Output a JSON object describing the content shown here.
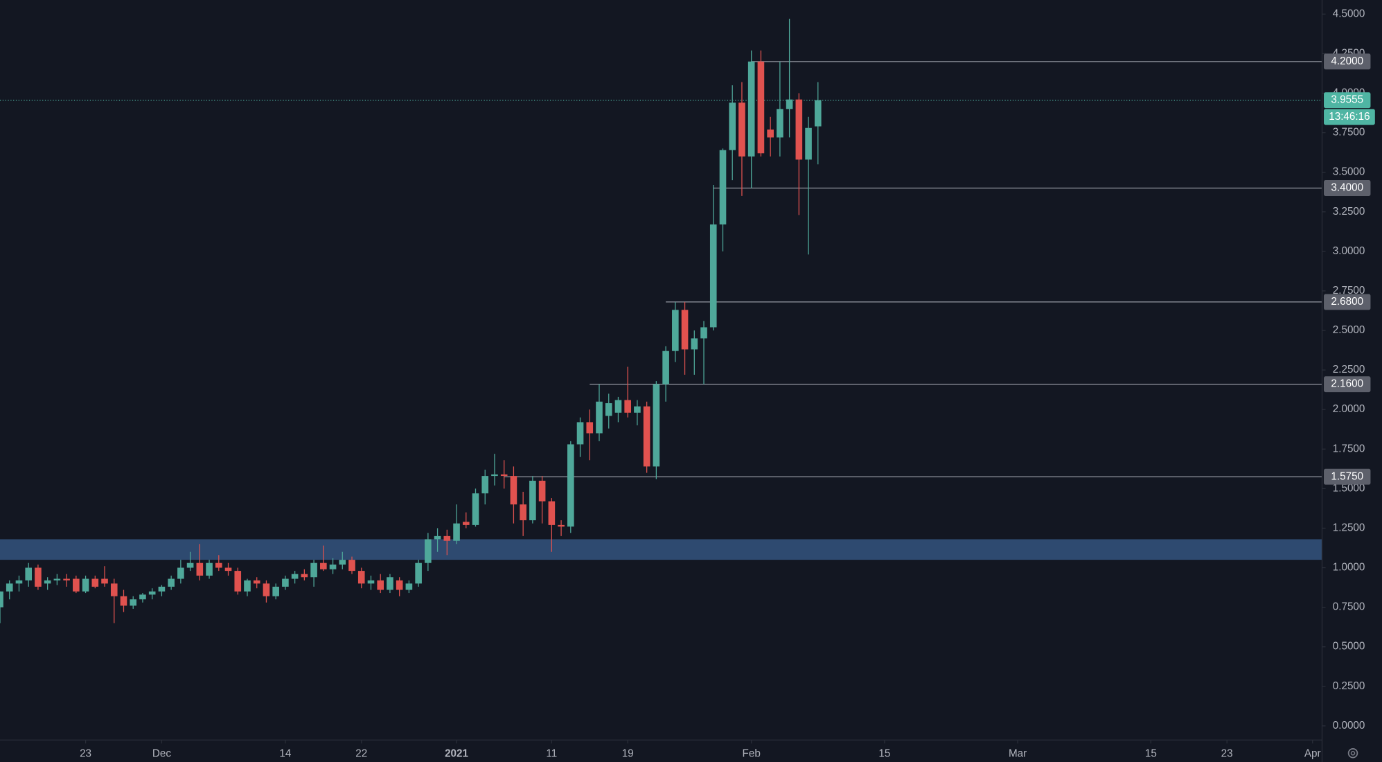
{
  "chart_data": {
    "type": "candlestick",
    "x": [
      "2020-11-14",
      "2020-11-15",
      "2020-11-16",
      "2020-11-17",
      "2020-11-18",
      "2020-11-19",
      "2020-11-20",
      "2020-11-21",
      "2020-11-22",
      "2020-11-23",
      "2020-11-24",
      "2020-11-25",
      "2020-11-26",
      "2020-11-27",
      "2020-11-28",
      "2020-11-29",
      "2020-11-30",
      "2020-12-01",
      "2020-12-02",
      "2020-12-03",
      "2020-12-04",
      "2020-12-05",
      "2020-12-06",
      "2020-12-07",
      "2020-12-08",
      "2020-12-09",
      "2020-12-10",
      "2020-12-11",
      "2020-12-12",
      "2020-12-13",
      "2020-12-14",
      "2020-12-15",
      "2020-12-16",
      "2020-12-17",
      "2020-12-18",
      "2020-12-19",
      "2020-12-20",
      "2020-12-21",
      "2020-12-22",
      "2020-12-23",
      "2020-12-24",
      "2020-12-25",
      "2020-12-26",
      "2020-12-27",
      "2020-12-28",
      "2020-12-29",
      "2020-12-30",
      "2020-12-31",
      "2021-01-01",
      "2021-01-02",
      "2021-01-03",
      "2021-01-04",
      "2021-01-05",
      "2021-01-06",
      "2021-01-07",
      "2021-01-08",
      "2021-01-09",
      "2021-01-10",
      "2021-01-11",
      "2021-01-12",
      "2021-01-13",
      "2021-01-14",
      "2021-01-15",
      "2021-01-16",
      "2021-01-17",
      "2021-01-18",
      "2021-01-19",
      "2021-01-20",
      "2021-01-21",
      "2021-01-22",
      "2021-01-23",
      "2021-01-24",
      "2021-01-25",
      "2021-01-26",
      "2021-01-27",
      "2021-01-28",
      "2021-01-29",
      "2021-01-30",
      "2021-01-31",
      "2021-02-01",
      "2021-02-02",
      "2021-02-03",
      "2021-02-04",
      "2021-02-05",
      "2021-02-06",
      "2021-02-07",
      "2021-02-08"
    ],
    "open": [
      0.75,
      0.85,
      0.9,
      0.92,
      1.0,
      0.9,
      0.92,
      0.93,
      0.93,
      0.85,
      0.93,
      0.93,
      0.9,
      0.82,
      0.76,
      0.8,
      0.83,
      0.85,
      0.88,
      0.93,
      1.0,
      1.03,
      0.95,
      1.03,
      1.0,
      0.98,
      0.85,
      0.92,
      0.9,
      0.82,
      0.88,
      0.93,
      0.96,
      0.94,
      1.03,
      0.99,
      1.02,
      1.05,
      0.98,
      0.9,
      0.92,
      0.86,
      0.92,
      0.86,
      0.9,
      1.03,
      1.18,
      1.2,
      1.17,
      1.29,
      1.27,
      1.47,
      1.58,
      1.59,
      1.58,
      1.4,
      1.3,
      1.55,
      1.42,
      1.27,
      1.26,
      1.78,
      1.92,
      1.85,
      1.96,
      1.98,
      2.06,
      1.98,
      2.02,
      1.64,
      2.16,
      2.37,
      2.63,
      2.38,
      2.45,
      2.52,
      3.17,
      3.64,
      3.94,
      3.6,
      4.2,
      3.77,
      3.72,
      3.9,
      3.96,
      3.58,
      3.79
    ],
    "high": [
      0.85,
      0.92,
      0.95,
      1.03,
      1.02,
      0.94,
      0.96,
      0.96,
      0.95,
      0.95,
      0.95,
      1.01,
      0.93,
      0.86,
      0.82,
      0.84,
      0.87,
      0.89,
      0.95,
      1.05,
      1.1,
      1.15,
      1.05,
      1.08,
      1.03,
      1.0,
      0.93,
      0.94,
      0.92,
      0.9,
      0.95,
      0.98,
      0.99,
      1.05,
      1.14,
      1.06,
      1.1,
      1.07,
      1.0,
      0.95,
      0.96,
      0.96,
      0.94,
      0.92,
      1.05,
      1.22,
      1.25,
      1.24,
      1.4,
      1.35,
      1.5,
      1.62,
      1.72,
      1.68,
      1.64,
      1.48,
      1.58,
      1.58,
      1.44,
      1.3,
      1.8,
      1.95,
      2.0,
      2.16,
      2.1,
      2.08,
      2.27,
      2.06,
      2.05,
      2.18,
      2.4,
      2.68,
      2.68,
      2.5,
      2.56,
      3.42,
      3.65,
      4.05,
      4.07,
      4.27,
      4.27,
      3.85,
      4.2,
      4.47,
      4.0,
      3.85,
      4.07
    ],
    "low": [
      0.65,
      0.8,
      0.85,
      0.88,
      0.86,
      0.86,
      0.89,
      0.88,
      0.84,
      0.84,
      0.87,
      0.88,
      0.65,
      0.72,
      0.74,
      0.78,
      0.8,
      0.82,
      0.86,
      0.9,
      0.98,
      0.92,
      0.93,
      0.98,
      0.95,
      0.83,
      0.82,
      0.87,
      0.78,
      0.8,
      0.86,
      0.9,
      0.92,
      0.88,
      0.98,
      0.96,
      0.99,
      0.96,
      0.87,
      0.86,
      0.84,
      0.84,
      0.82,
      0.84,
      0.88,
      0.98,
      1.1,
      1.08,
      1.15,
      1.25,
      1.26,
      1.4,
      1.52,
      1.5,
      1.28,
      1.2,
      1.28,
      1.28,
      1.1,
      1.2,
      1.22,
      1.7,
      1.68,
      1.8,
      1.88,
      1.92,
      1.95,
      1.9,
      1.6,
      1.56,
      2.05,
      2.3,
      2.22,
      2.22,
      2.16,
      2.5,
      3.0,
      3.45,
      3.35,
      3.4,
      3.6,
      3.6,
      3.6,
      3.72,
      3.23,
      2.98,
      3.55
    ],
    "close": [
      0.85,
      0.9,
      0.92,
      1.0,
      0.88,
      0.92,
      0.93,
      0.92,
      0.85,
      0.93,
      0.88,
      0.9,
      0.82,
      0.76,
      0.8,
      0.83,
      0.85,
      0.88,
      0.93,
      1.0,
      1.03,
      0.95,
      1.03,
      1.0,
      0.98,
      0.85,
      0.92,
      0.9,
      0.82,
      0.88,
      0.93,
      0.96,
      0.94,
      1.03,
      0.99,
      1.02,
      1.05,
      0.98,
      0.9,
      0.92,
      0.86,
      0.94,
      0.86,
      0.9,
      1.03,
      1.18,
      1.2,
      1.17,
      1.28,
      1.27,
      1.47,
      1.58,
      1.59,
      1.58,
      1.4,
      1.3,
      1.55,
      1.42,
      1.27,
      1.26,
      1.78,
      1.92,
      1.85,
      2.05,
      2.04,
      2.06,
      1.98,
      2.02,
      1.64,
      2.16,
      2.37,
      2.63,
      2.38,
      2.45,
      2.52,
      3.17,
      3.64,
      3.94,
      3.6,
      4.2,
      3.62,
      3.72,
      3.9,
      3.96,
      3.58,
      3.78,
      3.9555
    ],
    "up_color": "#4fa89a",
    "down_color": "#e0524f",
    "xlim": [
      "2020-11-14",
      "2021-04-02"
    ],
    "ylim": [
      -0.089,
      4.589
    ],
    "xticks": [
      {
        "value": "2020-11-23",
        "label": "23"
      },
      {
        "value": "2020-12-01",
        "label": "Dec"
      },
      {
        "value": "2020-12-14",
        "label": "14"
      },
      {
        "value": "2020-12-22",
        "label": "22"
      },
      {
        "value": "2021-01-01",
        "label": "2021"
      },
      {
        "value": "2021-01-11",
        "label": "11"
      },
      {
        "value": "2021-01-19",
        "label": "19"
      },
      {
        "value": "2021-02-01",
        "label": "Feb"
      },
      {
        "value": "2021-02-15",
        "label": "15"
      },
      {
        "value": "2021-03-01",
        "label": "Mar"
      },
      {
        "value": "2021-03-15",
        "label": "15"
      },
      {
        "value": "2021-03-23",
        "label": "23"
      },
      {
        "value": "2021-04-01",
        "label": "Apr"
      }
    ],
    "yticks": [
      {
        "value": 0,
        "label": "0.0000"
      },
      {
        "value": 0.25,
        "label": "0.2500"
      },
      {
        "value": 0.5,
        "label": "0.5000"
      },
      {
        "value": 0.75,
        "label": "0.7500"
      },
      {
        "value": 1,
        "label": "1.0000"
      },
      {
        "value": 1.25,
        "label": "1.2500"
      },
      {
        "value": 1.5,
        "label": "1.5000"
      },
      {
        "value": 1.75,
        "label": "1.7500"
      },
      {
        "value": 2,
        "label": "2.0000"
      },
      {
        "value": 2.25,
        "label": "2.2500"
      },
      {
        "value": 2.5,
        "label": "2.5000"
      },
      {
        "value": 2.75,
        "label": "2.7500"
      },
      {
        "value": 3,
        "label": "3.0000"
      },
      {
        "value": 3.25,
        "label": "3.2500"
      },
      {
        "value": 3.5,
        "label": "3.5000"
      },
      {
        "value": 3.75,
        "label": "3.7500"
      },
      {
        "value": 4,
        "label": "4.0000"
      },
      {
        "value": 4.25,
        "label": "4.2500"
      },
      {
        "value": 4.5,
        "label": "4.5000"
      }
    ],
    "levels": [
      {
        "value": 4.2,
        "label": "4.2000",
        "from": "2021-02-01"
      },
      {
        "value": 3.4,
        "label": "3.4000",
        "from": "2021-01-28"
      },
      {
        "value": 2.68,
        "label": "2.6800",
        "from": "2021-01-23"
      },
      {
        "value": 2.16,
        "label": "2.1600",
        "from": "2021-01-15"
      },
      {
        "value": 1.575,
        "label": "1.5750",
        "from": "2021-01-06"
      }
    ],
    "zones": [
      {
        "from": 1.05,
        "to": 1.18,
        "color": "#2e4a70"
      }
    ],
    "last_price": {
      "value": 3.9555,
      "label": "3.9555",
      "color": "#4fb5a3"
    },
    "countdown": "13:46:16"
  }
}
